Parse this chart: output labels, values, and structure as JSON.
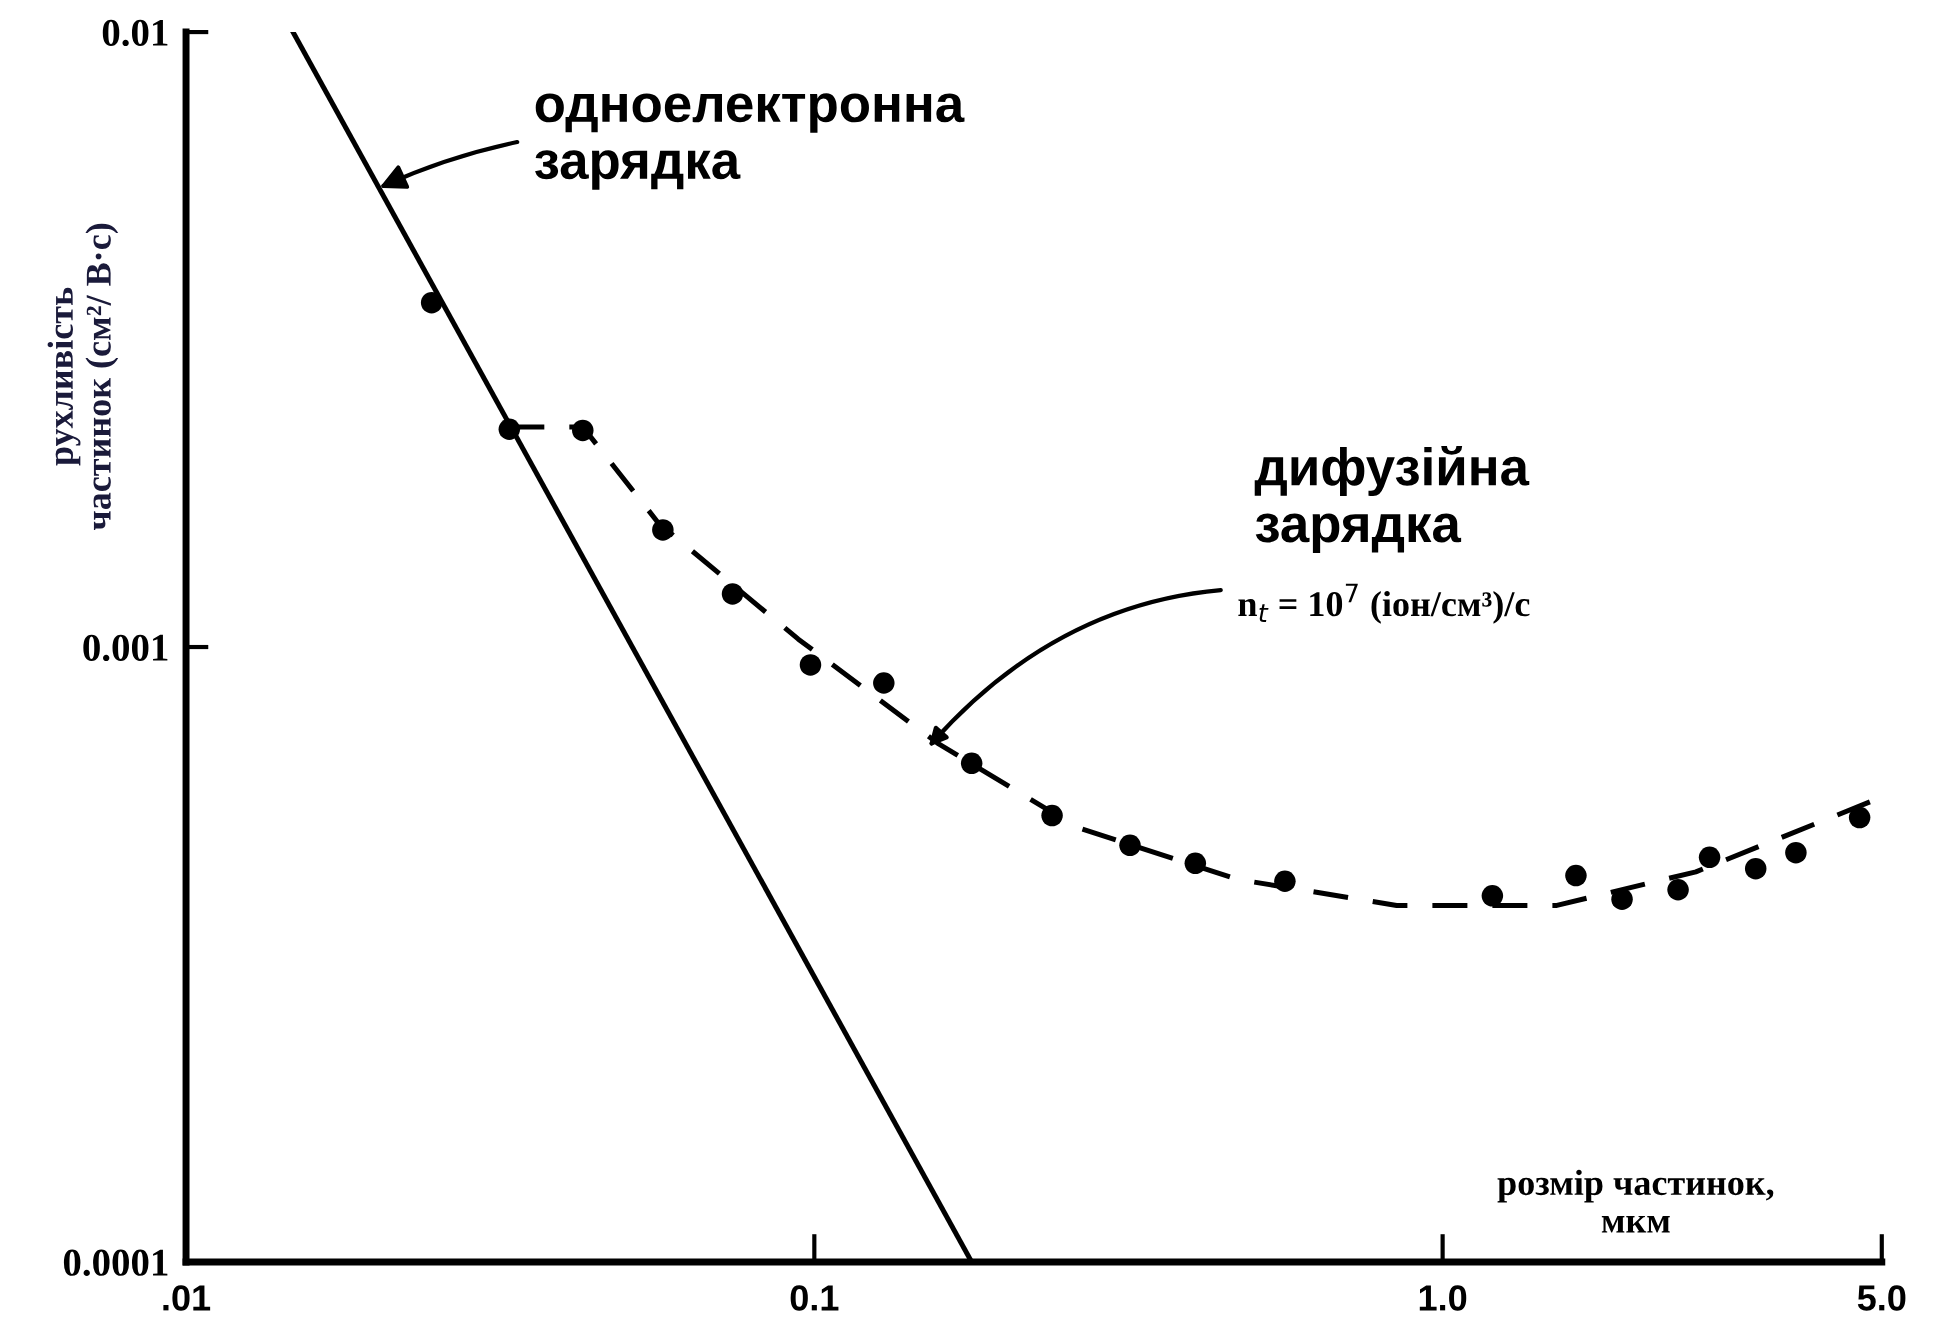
{
  "chart_data": {
    "type": "scatter",
    "xlabel": "розмір частинок,\nмкм",
    "ylabel": "рухливість\nчастинок (см²/ В·с)",
    "log": "xy",
    "xlim": [
      0.01,
      5.0
    ],
    "ylim": [
      0.0001,
      0.01
    ],
    "xticks": [
      {
        "value": 0.01,
        "label": ".01"
      },
      0.1,
      {
        "value": 1.0,
        "label": "1.0"
      },
      {
        "value": 5.0,
        "label": "5.0"
      }
    ],
    "yticks": [
      0.0001,
      0.001,
      0.01
    ],
    "grid": false,
    "legend": false,
    "series": [
      {
        "color": "#000000",
        "marker": "circle",
        "x": [
          0.0246,
          0.0327,
          0.0428,
          0.0574,
          0.0741,
          0.0986,
          0.129,
          0.178,
          0.239,
          0.318,
          0.404,
          0.561,
          1.2,
          1.63,
          1.93,
          2.37,
          2.66,
          3.15,
          3.65,
          4.61
        ],
        "values": [
          0.00363,
          0.00226,
          0.00225,
          0.00155,
          0.00122,
          0.000935,
          0.000874,
          0.000647,
          0.000532,
          0.000476,
          0.000445,
          0.000416,
          0.000394,
          0.000425,
          0.000389,
          0.000403,
          0.000455,
          0.000436,
          0.000463,
          0.000528
        ]
      },
      {
        "type": "line",
        "color": "#000000",
        "line_style": "solid",
        "marker": "none",
        "x": [
          0.0148,
          0.178
        ],
        "values": [
          0.01,
          0.0001
        ]
      },
      {
        "type": "line",
        "color": "#000000",
        "line_style": "dashed",
        "marker": "none",
        "x": [
          0.0327,
          0.0428,
          0.0565,
          0.0943,
          0.157,
          0.262,
          0.471,
          0.845,
          1.52,
          2.53,
          5.0
        ],
        "values": [
          0.00228,
          0.00228,
          0.00159,
          0.00103,
          0.000698,
          0.000509,
          0.000419,
          0.00038,
          0.00038,
          0.000431,
          0.00057
        ]
      }
    ],
    "annotations": [
      {
        "text": "одноелектронна\nзарядка",
        "x": 0.0203,
        "y": 0.00558
      },
      "дифузійна\nзарядка",
      {
        "text": "n$_{t}$ = 10$^{7}$ (іон/см³)/с",
        "x": 0.152,
        "y": 0.000688
      }
    ]
  }
}
